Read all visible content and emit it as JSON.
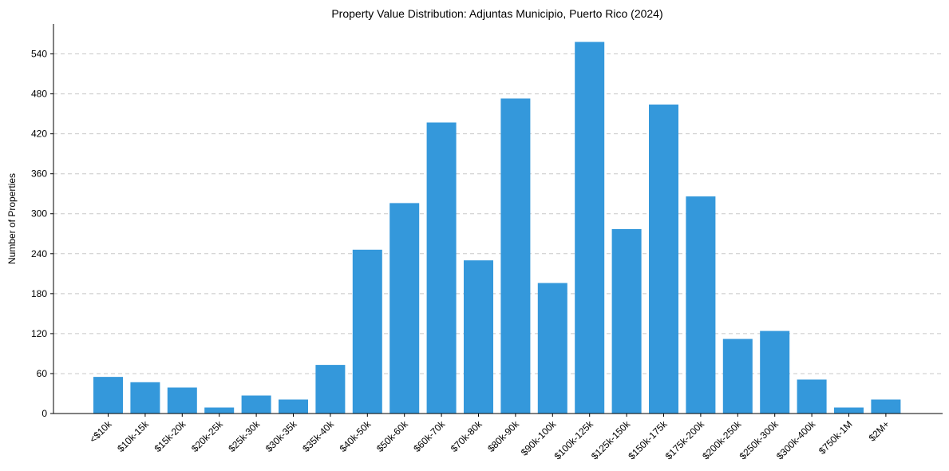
{
  "chart_data": {
    "type": "bar",
    "title": "Property Value Distribution: Adjuntas Municipio, Puerto Rico (2024)",
    "xlabel": "",
    "ylabel": "Number of Properties",
    "categories": [
      "<$10k",
      "$10k-15k",
      "$15k-20k",
      "$20k-25k",
      "$25k-30k",
      "$30k-35k",
      "$35k-40k",
      "$40k-50k",
      "$50k-60k",
      "$60k-70k",
      "$70k-80k",
      "$80k-90k",
      "$90k-100k",
      "$100k-125k",
      "$125k-150k",
      "$150k-175k",
      "$175k-200k",
      "$200k-250k",
      "$250k-300k",
      "$300k-400k",
      "$750k-1M",
      "$2M+"
    ],
    "values": [
      55,
      47,
      39,
      9,
      27,
      21,
      73,
      246,
      316,
      437,
      230,
      473,
      196,
      558,
      277,
      464,
      326,
      112,
      124,
      51,
      9,
      21
    ],
    "ylim": [
      0,
      585
    ],
    "yticks": [
      0,
      60,
      120,
      180,
      240,
      300,
      360,
      420,
      480,
      540
    ],
    "grid": "y-dashed",
    "bar_color": "#3498db"
  }
}
